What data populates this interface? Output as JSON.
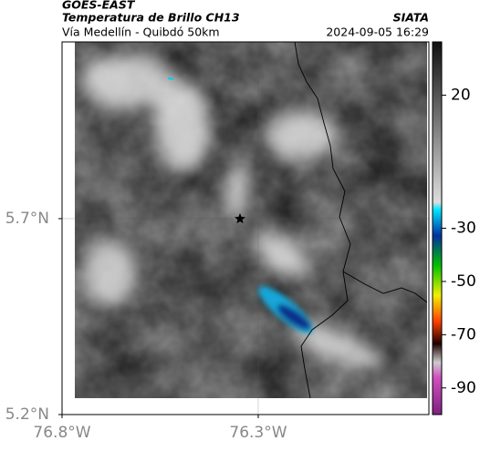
{
  "chart_data": {
    "type": "map",
    "title": "GOES-EAST",
    "subtitle": "Temperatura de Brillo CH13",
    "region": "Vía Medellín - Quibdó 50km",
    "source": "SIATA",
    "timestamp": "2024-09-05 16:29",
    "xlim": [
      -76.8,
      -75.865
    ],
    "ylim": [
      5.2,
      6.151
    ],
    "xticks": [
      {
        "value": -76.8,
        "label": "76.8°W"
      },
      {
        "value": -76.3,
        "label": "76.3°W"
      }
    ],
    "yticks": [
      {
        "value": 5.2,
        "label": "5.2°N"
      },
      {
        "value": 5.7,
        "label": "5.7°N"
      }
    ],
    "grid": true,
    "colorbar": {
      "lim": [
        -100,
        40
      ],
      "ticks": [
        20,
        -30,
        -50,
        -70,
        -90
      ]
    }
  }
}
